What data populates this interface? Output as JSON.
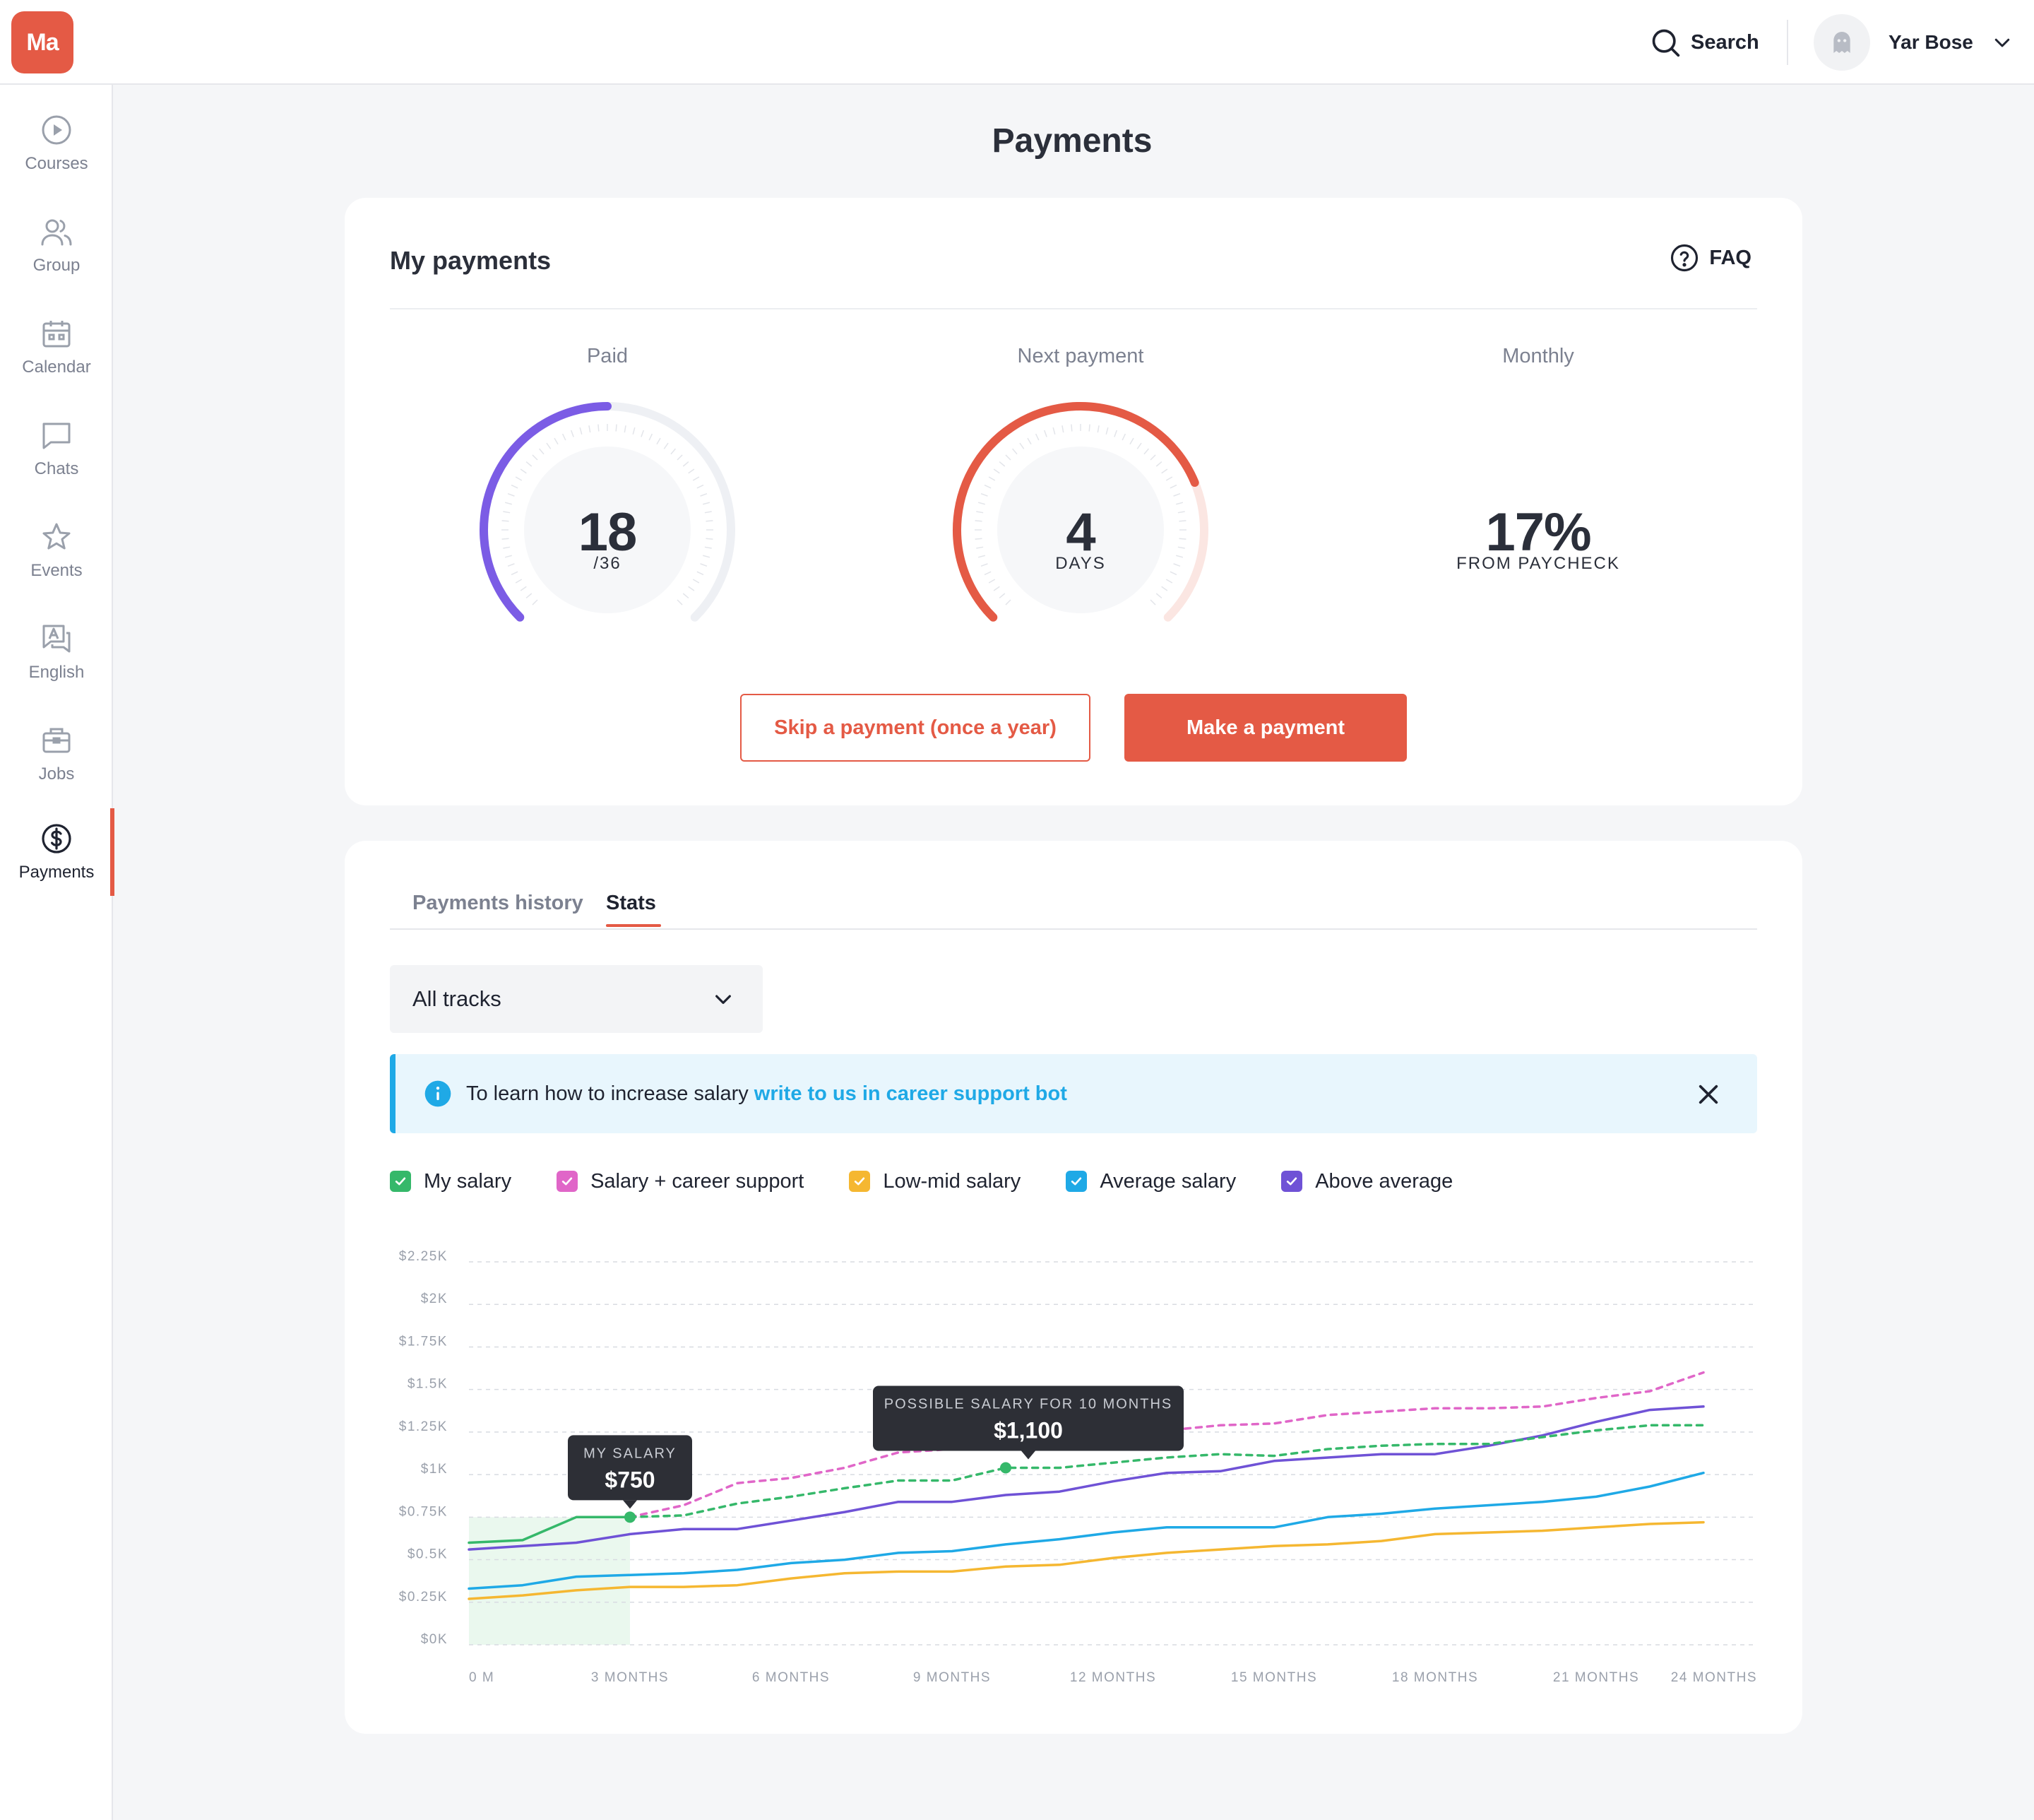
{
  "app": {
    "logo_text": "Ma"
  },
  "header": {
    "search_label": "Search",
    "user_name": "Yar Bose"
  },
  "sidebar": {
    "items": [
      {
        "label": "Courses",
        "icon": "play-circle-icon"
      },
      {
        "label": "Group",
        "icon": "users-icon"
      },
      {
        "label": "Calendar",
        "icon": "calendar-icon"
      },
      {
        "label": "Chats",
        "icon": "chat-icon"
      },
      {
        "label": "Events",
        "icon": "star-icon"
      },
      {
        "label": "English",
        "icon": "language-icon"
      },
      {
        "label": "Jobs",
        "icon": "briefcase-icon"
      },
      {
        "label": "Payments",
        "icon": "dollar-circle-icon",
        "active": true
      }
    ]
  },
  "page": {
    "title": "Payments"
  },
  "my_payments": {
    "title": "My payments",
    "faq_label": "FAQ",
    "paid": {
      "label": "Paid",
      "value": "18",
      "total": "/36",
      "fraction": 0.5,
      "color": "#7b5ce5"
    },
    "next_payment": {
      "label": "Next payment",
      "value": "4",
      "unit": "DAYS",
      "fraction": 0.75,
      "color": "#e45a45"
    },
    "monthly": {
      "label": "Monthly",
      "value": "17%",
      "unit": "FROM PAYCHECK"
    },
    "skip_button": "Skip a payment (once a year)",
    "pay_button": "Make a payment"
  },
  "stats": {
    "tabs": [
      {
        "label": "Payments history",
        "active": false
      },
      {
        "label": "Stats",
        "active": true
      }
    ],
    "track_select": "All tracks",
    "banner": {
      "text": "To learn how to increase salary",
      "link": "write to us in career support bot"
    },
    "legend": [
      {
        "label": "My salary",
        "color": "#35b86a",
        "checked": true
      },
      {
        "label": "Salary + career support",
        "color": "#e066c8",
        "checked": true
      },
      {
        "label": "Low-mid salary",
        "color": "#f5b731",
        "checked": true
      },
      {
        "label": "Average salary",
        "color": "#1fa9e6",
        "checked": true
      },
      {
        "label": "Above average",
        "color": "#6f52d6",
        "checked": true
      }
    ],
    "tooltip_my_salary": {
      "caption": "MY SALARY",
      "value": "$750"
    },
    "tooltip_possible": {
      "caption": "POSSIBLE SALARY FOR 10 MONTHS",
      "value": "$1,100"
    }
  },
  "chart_data": {
    "type": "line",
    "xlabel": "",
    "ylabel": "",
    "ylim": [
      0,
      2250
    ],
    "xlim": [
      0,
      24
    ],
    "grid": true,
    "y_ticks": [
      "$0K",
      "$0.25K",
      "$0.5K",
      "$0.75K",
      "$1K",
      "$1.25K",
      "$1.5K",
      "$1.75K",
      "$2K",
      "$2.25K"
    ],
    "y_tick_values": [
      0,
      250,
      500,
      750,
      1000,
      1250,
      1500,
      1750,
      2000,
      2250
    ],
    "x_ticks": [
      "0 M",
      "3 MONTHS",
      "6 MONTHS",
      "9 MONTHS",
      "12 MONTHS",
      "15 MONTHS",
      "18 MONTHS",
      "21 MONTHS",
      "24 MONTHS"
    ],
    "x_tick_values": [
      0,
      3,
      6,
      9,
      12,
      15,
      18,
      21,
      24
    ],
    "x": [
      0,
      1,
      2,
      3,
      4,
      5,
      6,
      7,
      8,
      9,
      10,
      11,
      12,
      13,
      14,
      15,
      16,
      17,
      18,
      19,
      20,
      21,
      22,
      23,
      24
    ],
    "series": [
      {
        "name": "My salary",
        "color": "#35b86a",
        "dashed": false,
        "x": [
          0,
          1,
          2,
          3
        ],
        "values": [
          600,
          615,
          750,
          750
        ]
      },
      {
        "name": "My salary",
        "color": "#35b86a",
        "dashed": true,
        "x": [
          3,
          4,
          5,
          6,
          7,
          8,
          9,
          10,
          11,
          12,
          13,
          14,
          15,
          16,
          17,
          18,
          19,
          20,
          21,
          22,
          23
        ],
        "values": [
          750,
          760,
          830,
          870,
          920,
          965,
          965,
          1040,
          1040,
          1070,
          1100,
          1120,
          1110,
          1150,
          1170,
          1180,
          1180,
          1220,
          1260,
          1290,
          1290
        ]
      },
      {
        "name": "Salary + career support",
        "color": "#e066c8",
        "dashed": true,
        "x": [
          3,
          4,
          5,
          6,
          7,
          8,
          9,
          10,
          11,
          12,
          13,
          14,
          15,
          16,
          17,
          18,
          19,
          20,
          21,
          22,
          23
        ],
        "values": [
          750,
          820,
          950,
          980,
          1040,
          1130,
          1150,
          1200,
          1210,
          1230,
          1260,
          1290,
          1300,
          1350,
          1370,
          1390,
          1390,
          1400,
          1450,
          1490,
          1600
        ]
      },
      {
        "name": "Low-mid salary",
        "color": "#f5b731",
        "dashed": false,
        "x": [
          0,
          1,
          2,
          3,
          4,
          5,
          6,
          7,
          8,
          9,
          10,
          11,
          12,
          13,
          14,
          15,
          16,
          17,
          18,
          19,
          20,
          21,
          22,
          23
        ],
        "values": [
          270,
          290,
          320,
          340,
          340,
          350,
          390,
          420,
          430,
          430,
          460,
          470,
          510,
          540,
          560,
          580,
          590,
          610,
          650,
          660,
          670,
          690,
          710,
          720
        ]
      },
      {
        "name": "Average salary",
        "color": "#1fa9e6",
        "dashed": false,
        "x": [
          0,
          1,
          2,
          3,
          4,
          5,
          6,
          7,
          8,
          9,
          10,
          11,
          12,
          13,
          14,
          15,
          16,
          17,
          18,
          19,
          20,
          21,
          22,
          23
        ],
        "values": [
          330,
          350,
          400,
          410,
          420,
          440,
          480,
          500,
          540,
          550,
          590,
          620,
          660,
          690,
          690,
          690,
          750,
          770,
          800,
          820,
          840,
          870,
          930,
          1010
        ]
      },
      {
        "name": "Above average",
        "color": "#6f52d6",
        "dashed": false,
        "x": [
          0,
          1,
          2,
          3,
          4,
          5,
          6,
          7,
          8,
          9,
          10,
          11,
          12,
          13,
          14,
          15,
          16,
          17,
          18,
          19,
          20,
          21,
          22,
          23
        ],
        "values": [
          560,
          580,
          600,
          650,
          680,
          680,
          730,
          780,
          840,
          840,
          880,
          900,
          960,
          1010,
          1020,
          1080,
          1100,
          1120,
          1120,
          1170,
          1230,
          1310,
          1380,
          1400
        ]
      }
    ],
    "highlight_range": [
      0,
      3
    ]
  }
}
